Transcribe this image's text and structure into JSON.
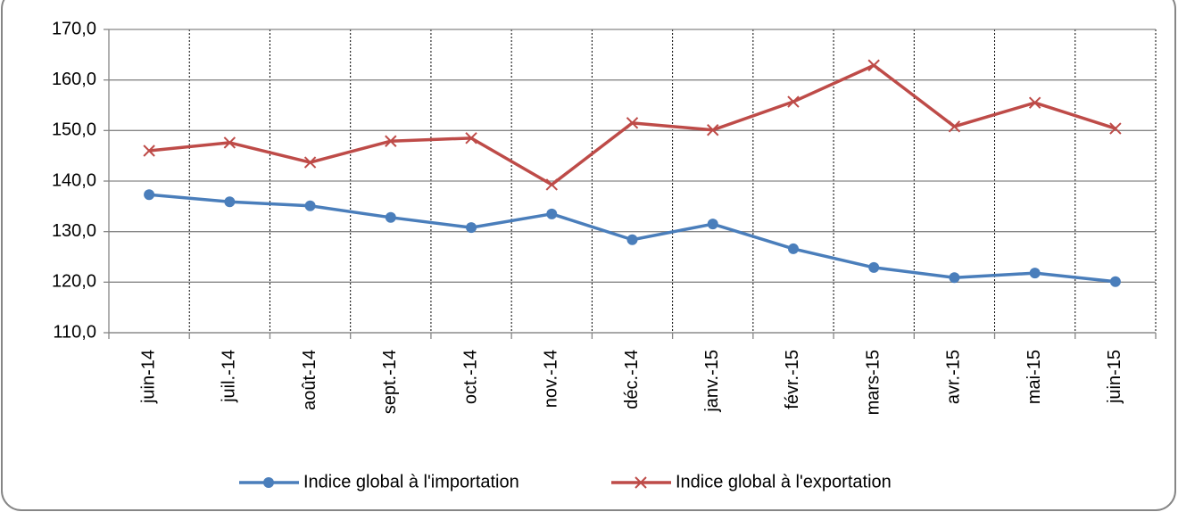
{
  "chart_data": {
    "type": "line",
    "categories": [
      "juin-14",
      "juil.-14",
      "août-14",
      "sept.-14",
      "oct.-14",
      "nov.-14",
      "déc.-14",
      "janv.-15",
      "févr.-15",
      "mars-15",
      "avr.-15",
      "mai-15",
      "juin-15"
    ],
    "series": [
      {
        "name": "Indice global à l'importation",
        "color": "#4a7ebb",
        "marker": "circle",
        "values": [
          137.3,
          135.9,
          135.1,
          132.8,
          130.8,
          133.5,
          128.4,
          131.5,
          126.6,
          122.9,
          120.9,
          121.8,
          120.1
        ]
      },
      {
        "name": "Indice global à l'exportation",
        "color": "#be4b48",
        "marker": "x",
        "values": [
          146.0,
          147.6,
          143.7,
          147.9,
          148.5,
          139.3,
          151.5,
          150.1,
          155.7,
          162.9,
          150.8,
          155.5,
          150.4
        ]
      }
    ],
    "ylim": [
      110,
      170
    ],
    "yticks": [
      {
        "value": 110,
        "label": "110,0"
      },
      {
        "value": 120,
        "label": "120,0"
      },
      {
        "value": 130,
        "label": "130,0"
      },
      {
        "value": 140,
        "label": "140,0"
      },
      {
        "value": 150,
        "label": "150,0"
      },
      {
        "value": 160,
        "label": "160,0"
      },
      {
        "value": 170,
        "label": "170,0"
      }
    ],
    "grid": true,
    "legend": "bottom"
  }
}
